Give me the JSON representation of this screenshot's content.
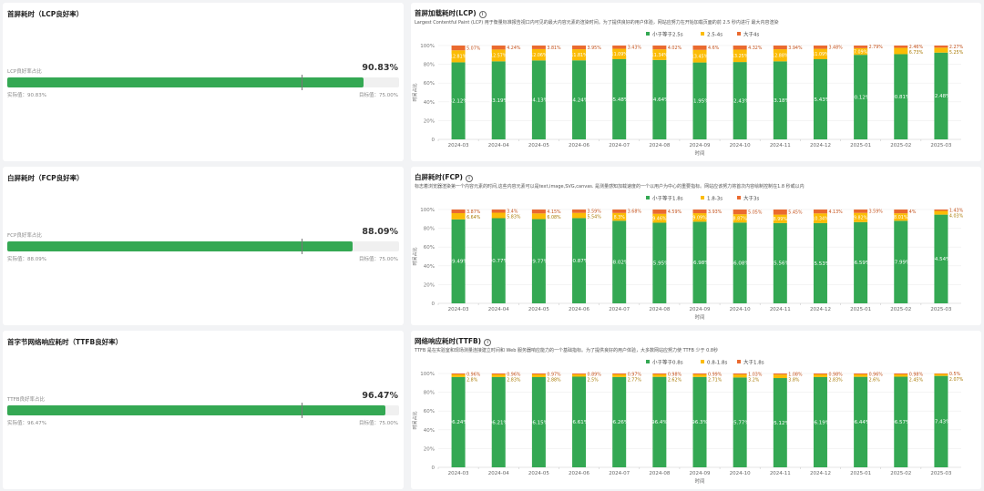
{
  "left_panels": [
    {
      "title": "首屏耗时（LCP良好率）",
      "gauge_label": "LCP良好率占比",
      "value_text": "90.83%",
      "value": 90.83,
      "target": 75,
      "actual_text": "实际值：90.83%",
      "target_text": "目标值：75.00%"
    },
    {
      "title": "白屏耗时（FCP良好率）",
      "gauge_label": "FCP良好率占比",
      "value_text": "88.09%",
      "value": 88.09,
      "target": 75,
      "actual_text": "实际值：88.09%",
      "target_text": "目标值：75.00%"
    },
    {
      "title": "首字节网络响应耗时（TTFB良好率）",
      "gauge_label": "TTFB良好率占比",
      "value_text": "96.47%",
      "value": 96.47,
      "target": 75,
      "actual_text": "实际值：96.47%",
      "target_text": "目标值：75.00%"
    }
  ],
  "colors": {
    "green": "#34a853",
    "yellow": "#fbbc05",
    "red": "#ea6a2f"
  },
  "chart_data": [
    {
      "type": "bar",
      "stacked": true,
      "title": "首屏加载耗时(LCP)",
      "info_icon": "info-icon",
      "description": "Largest Contentful Paint (LCP) 用于衡量标准报告视口内可见的最大内容元素的渲染时间。为了提供良好的用户体验，网站应努力在开始加载页面的前 2.5 秒内进行 最大内容渲染",
      "xlabel": "时间",
      "ylabel": "时间占比",
      "yticks": [
        "0",
        "20%",
        "40%",
        "60%",
        "80%",
        "100%"
      ],
      "ylim": [
        0,
        100
      ],
      "legend_position": "top-center",
      "categories": [
        "2024-03",
        "2024-04",
        "2024-05",
        "2024-06",
        "2024-07",
        "2024-08",
        "2024-09",
        "2024-10",
        "2024-11",
        "2024-12",
        "2025-01",
        "2025-02",
        "2025-03"
      ],
      "series": [
        {
          "name": "小于等于2.5s",
          "values": [
            82.12,
            83.19,
            84.13,
            84.24,
            85.48,
            84.64,
            81.95,
            82.43,
            83.18,
            85.43,
            90.12,
            90.81,
            92.48
          ]
        },
        {
          "name": "2.5-4s",
          "values": [
            12.81,
            12.57,
            12.06,
            11.81,
            11.09,
            11.34,
            13.45,
            13.25,
            12.88,
            11.09,
            7.09,
            6.73,
            5.25
          ]
        },
        {
          "name": "大于4s",
          "values": [
            5.07,
            4.24,
            3.81,
            3.95,
            3.43,
            4.02,
            4.6,
            4.32,
            3.94,
            3.48,
            2.79,
            2.46,
            2.27
          ]
        }
      ]
    },
    {
      "type": "bar",
      "stacked": true,
      "title": "白屏耗时(FCP)",
      "info_icon": "info-icon",
      "description": "标志着浏览器渲染第一个内容元素的时间,这些内容元素可以是text,image,SVG,canvas. 是测量感知加载速度的一个以用户为中心的重要指标。网站应该努力将首次内容绘制控制在1.8 秒或以内",
      "xlabel": "时间",
      "ylabel": "时间占比",
      "yticks": [
        "0",
        "20%",
        "40%",
        "60%",
        "80%",
        "100%"
      ],
      "ylim": [
        0,
        100
      ],
      "legend_position": "top-center",
      "categories": [
        "2024-03",
        "2024-04",
        "2024-05",
        "2024-06",
        "2024-07",
        "2024-08",
        "2024-09",
        "2024-10",
        "2024-11",
        "2024-12",
        "2025-01",
        "2025-02",
        "2025-03"
      ],
      "series": [
        {
          "name": "小于等于1.8s",
          "values": [
            89.49,
            90.77,
            89.77,
            90.87,
            88.02,
            85.95,
            86.98,
            86.08,
            85.56,
            85.53,
            86.59,
            87.99,
            94.54
          ]
        },
        {
          "name": "1.8-3s",
          "values": [
            6.64,
            5.83,
            6.08,
            5.54,
            8.3,
            9.46,
            9.09,
            8.87,
            8.99,
            10.34,
            9.82,
            8.01,
            4.03
          ]
        },
        {
          "name": "大于3s",
          "values": [
            3.87,
            3.4,
            4.15,
            3.59,
            3.68,
            4.59,
            3.93,
            5.05,
            5.45,
            4.13,
            3.59,
            4.0,
            1.43
          ]
        }
      ]
    },
    {
      "type": "bar",
      "stacked": true,
      "title": "网络响应耗时(TTFB)",
      "info_icon": "info-icon",
      "description": "TTFB 是在实验室和现场测量连接建立时间和 Web 服务器响应能力的一个基础指标。为了提供良好的用户体验，大多数网站应努力使 TTFB 少于 0.8秒",
      "xlabel": "时间",
      "ylabel": "时间占比",
      "yticks": [
        "0",
        "20%",
        "40%",
        "60%",
        "80%",
        "100%"
      ],
      "ylim": [
        0,
        100
      ],
      "legend_position": "top-center",
      "categories": [
        "2024-03",
        "2024-04",
        "2024-05",
        "2024-06",
        "2024-07",
        "2024-08",
        "2024-09",
        "2024-10",
        "2024-11",
        "2024-12",
        "2025-01",
        "2025-02",
        "2025-03"
      ],
      "series": [
        {
          "name": "小于等于0.8s",
          "values": [
            96.24,
            96.21,
            96.15,
            96.61,
            96.26,
            96.4,
            96.3,
            95.77,
            95.12,
            96.19,
            96.44,
            96.57,
            97.43
          ]
        },
        {
          "name": "0.8-1.8s",
          "values": [
            2.8,
            2.83,
            2.88,
            2.5,
            2.77,
            2.62,
            2.71,
            3.2,
            3.8,
            2.83,
            2.6,
            2.45,
            2.07
          ]
        },
        {
          "name": "大于1.8s",
          "values": [
            0.96,
            0.96,
            0.97,
            0.89,
            0.97,
            0.98,
            0.99,
            1.03,
            1.08,
            0.98,
            0.96,
            0.98,
            0.5
          ]
        }
      ]
    }
  ]
}
